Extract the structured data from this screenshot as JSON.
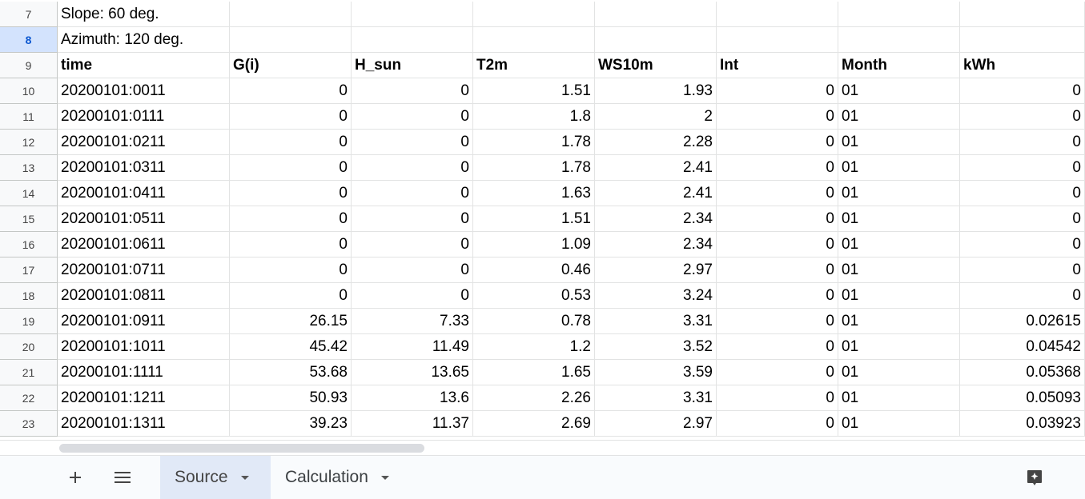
{
  "sheet": {
    "rows": [
      {
        "n": "7",
        "span": "Slope: 60 deg."
      },
      {
        "n": "8",
        "span": "Azimuth: 120 deg.",
        "selected": true
      },
      {
        "n": "9",
        "header": true,
        "cells": [
          "time",
          "G(i)",
          "H_sun",
          "T2m",
          "WS10m",
          "Int",
          "Month",
          "kWh"
        ]
      },
      {
        "n": "10",
        "cells": [
          "20200101:0011",
          "0",
          "0",
          "1.51",
          "1.93",
          "0",
          "01",
          "0"
        ]
      },
      {
        "n": "11",
        "cells": [
          "20200101:0111",
          "0",
          "0",
          "1.8",
          "2",
          "0",
          "01",
          "0"
        ]
      },
      {
        "n": "12",
        "cells": [
          "20200101:0211",
          "0",
          "0",
          "1.78",
          "2.28",
          "0",
          "01",
          "0"
        ]
      },
      {
        "n": "13",
        "cells": [
          "20200101:0311",
          "0",
          "0",
          "1.78",
          "2.41",
          "0",
          "01",
          "0"
        ]
      },
      {
        "n": "14",
        "cells": [
          "20200101:0411",
          "0",
          "0",
          "1.63",
          "2.41",
          "0",
          "01",
          "0"
        ]
      },
      {
        "n": "15",
        "cells": [
          "20200101:0511",
          "0",
          "0",
          "1.51",
          "2.34",
          "0",
          "01",
          "0"
        ]
      },
      {
        "n": "16",
        "cells": [
          "20200101:0611",
          "0",
          "0",
          "1.09",
          "2.34",
          "0",
          "01",
          "0"
        ]
      },
      {
        "n": "17",
        "cells": [
          "20200101:0711",
          "0",
          "0",
          "0.46",
          "2.97",
          "0",
          "01",
          "0"
        ]
      },
      {
        "n": "18",
        "cells": [
          "20200101:0811",
          "0",
          "0",
          "0.53",
          "3.24",
          "0",
          "01",
          "0"
        ]
      },
      {
        "n": "19",
        "cells": [
          "20200101:0911",
          "26.15",
          "7.33",
          "0.78",
          "3.31",
          "0",
          "01",
          "0.02615"
        ]
      },
      {
        "n": "20",
        "cells": [
          "20200101:1011",
          "45.42",
          "11.49",
          "1.2",
          "3.52",
          "0",
          "01",
          "0.04542"
        ]
      },
      {
        "n": "21",
        "cells": [
          "20200101:1111",
          "53.68",
          "13.65",
          "1.65",
          "3.59",
          "0",
          "01",
          "0.05368"
        ]
      },
      {
        "n": "22",
        "cells": [
          "20200101:1211",
          "50.93",
          "13.6",
          "2.26",
          "3.31",
          "0",
          "01",
          "0.05093"
        ]
      },
      {
        "n": "23",
        "cells": [
          "20200101:1311",
          "39.23",
          "11.37",
          "2.69",
          "2.97",
          "0",
          "01",
          "0.03923"
        ]
      }
    ]
  },
  "tabs": {
    "add_icon": "plus-icon",
    "menu_icon": "hamburger-menu-icon",
    "explore_icon": "explore-sparkle-icon",
    "items": [
      {
        "label": "Source",
        "active": true
      },
      {
        "label": "Calculation",
        "active": false
      }
    ]
  },
  "colors": {
    "selected_row_header": "#d3e3fd",
    "active_tab": "#e1e9f7",
    "grid_line": "#e2e3e3"
  }
}
